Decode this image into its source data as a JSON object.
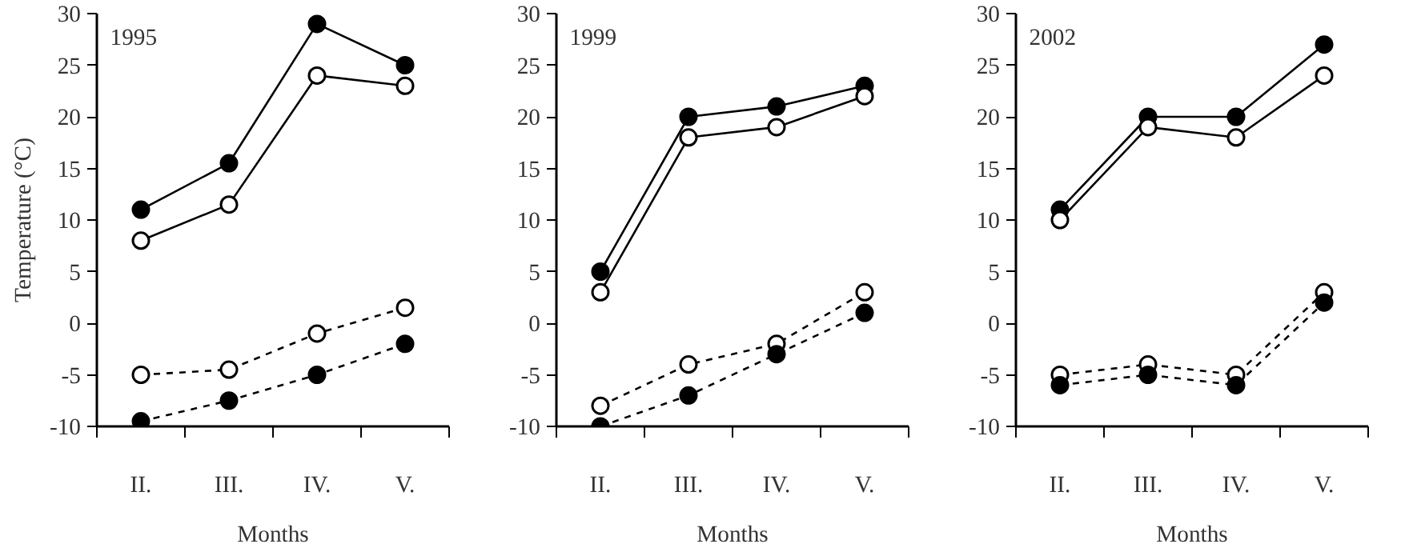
{
  "chart_data": [
    {
      "type": "line",
      "title": "1995",
      "xlabel": "Months",
      "ylabel": "Temperature (°C)",
      "categories": [
        "II.",
        "III.",
        "IV.",
        "V."
      ],
      "ylim": [
        -10,
        30
      ],
      "yticks": [
        -10,
        -5,
        0,
        5,
        10,
        15,
        20,
        25,
        30
      ],
      "grid": false,
      "marker": "circle",
      "series": [
        {
          "color": "#000000",
          "line_style": "solid",
          "values": [
            11,
            15.5,
            29,
            25
          ]
        },
        {
          "color": "#000000",
          "colors": [
            "#ffffff",
            "#ffffff",
            "#ffffff",
            "#ffffff"
          ],
          "line_style": "solid",
          "values": [
            8,
            11.5,
            24,
            23
          ]
        },
        {
          "color": "#000000",
          "colors": [
            "#ffffff",
            "#ffffff",
            "#ffffff",
            "#ffffff"
          ],
          "line_style": "dashed",
          "values": [
            -5,
            -4.5,
            -1,
            1.5
          ]
        },
        {
          "color": "#000000",
          "line_style": "dashed",
          "values": [
            -9.5,
            -7.5,
            -5,
            -2
          ]
        }
      ]
    },
    {
      "type": "line",
      "title": "1999",
      "xlabel": "Months",
      "categories": [
        "II.",
        "III.",
        "IV.",
        "V."
      ],
      "ylim": [
        -10,
        30
      ],
      "yticks": [
        -10,
        -5,
        0,
        5,
        10,
        15,
        20,
        25,
        30
      ],
      "grid": false,
      "marker": "circle",
      "series": [
        {
          "color": "#000000",
          "line_style": "solid",
          "values": [
            5,
            20,
            21,
            23
          ]
        },
        {
          "color": "#000000",
          "colors": [
            "#ffffff",
            "#ffffff",
            "#ffffff",
            "#ffffff"
          ],
          "line_style": "solid",
          "values": [
            3,
            18,
            19,
            22
          ]
        },
        {
          "color": "#000000",
          "colors": [
            "#ffffff",
            "#ffffff",
            "#ffffff",
            "#ffffff"
          ],
          "line_style": "dashed",
          "values": [
            -8,
            -4,
            -2,
            3
          ]
        },
        {
          "color": "#000000",
          "line_style": "dashed",
          "values": [
            -10,
            -7,
            -3,
            1
          ]
        }
      ]
    },
    {
      "type": "line",
      "title": "2002",
      "xlabel": "Months",
      "categories": [
        "II.",
        "III.",
        "IV.",
        "V."
      ],
      "ylim": [
        -10,
        30
      ],
      "yticks": [
        -10,
        -5,
        0,
        5,
        10,
        15,
        20,
        25,
        30
      ],
      "grid": false,
      "marker": "circle",
      "series": [
        {
          "color": "#000000",
          "line_style": "solid",
          "values": [
            11,
            20,
            20,
            27
          ]
        },
        {
          "color": "#000000",
          "colors": [
            "#ffffff",
            "#ffffff",
            "#ffffff",
            "#ffffff"
          ],
          "line_style": "solid",
          "values": [
            10,
            19,
            18,
            24
          ]
        },
        {
          "color": "#000000",
          "colors": [
            "#ffffff",
            "#ffffff",
            "#ffffff",
            "#ffffff"
          ],
          "line_style": "dashed",
          "values": [
            -5,
            -4,
            -5,
            3
          ]
        },
        {
          "color": "#000000",
          "line_style": "dashed",
          "values": [
            -6,
            -5,
            -6,
            2
          ]
        }
      ]
    }
  ]
}
